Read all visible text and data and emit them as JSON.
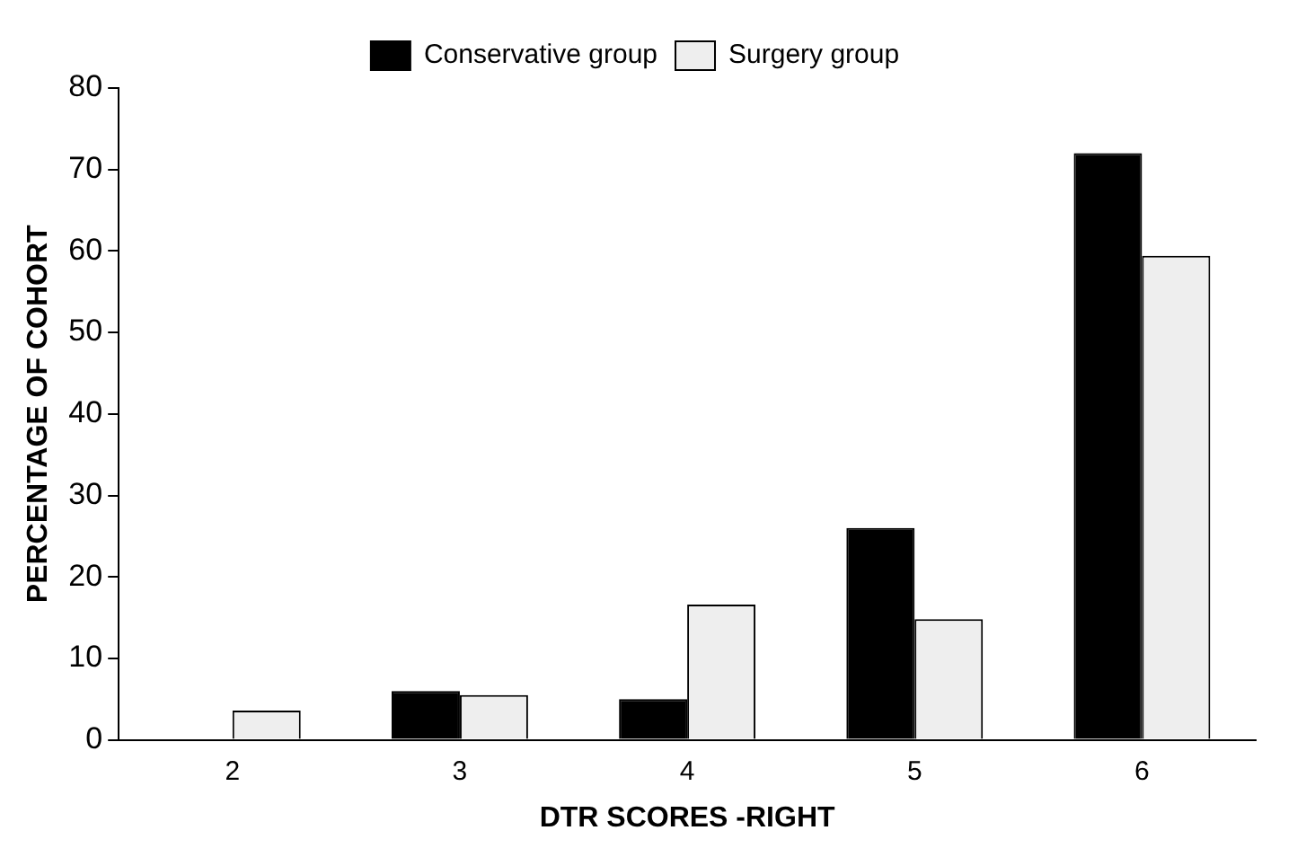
{
  "chart_data": {
    "type": "bar",
    "xlabel": "DTR SCORES -RIGHT",
    "ylabel": "PERCENTAGE OF COHORT",
    "categories": [
      "2",
      "3",
      "4",
      "5",
      "6"
    ],
    "series": [
      {
        "name": "Conservative group",
        "color": "#000000",
        "values": [
          0,
          6,
          5,
          26,
          72
        ]
      },
      {
        "name": "Surgery group",
        "color": "#eeeeee",
        "values": [
          3.6,
          5.5,
          16.6,
          14.8,
          59.4
        ]
      }
    ],
    "ylim": [
      0,
      80
    ],
    "yticks": [
      0,
      10,
      20,
      30,
      40,
      50,
      60,
      70,
      80
    ],
    "grid": false,
    "legend": "top"
  }
}
